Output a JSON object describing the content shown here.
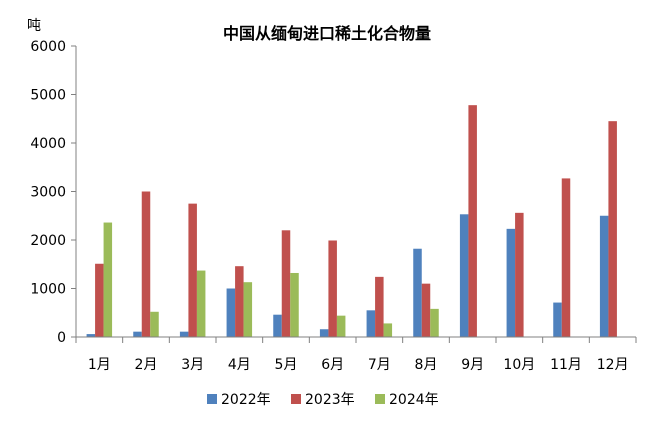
{
  "chart_data": {
    "type": "bar",
    "title": "中国从缅甸进口稀土化合物量",
    "ylabel": "吨",
    "xlabel": "",
    "ylim": [
      0,
      6000
    ],
    "yticks": [
      0,
      1000,
      2000,
      3000,
      4000,
      5000,
      6000
    ],
    "categories": [
      "1月",
      "2月",
      "3月",
      "4月",
      "5月",
      "6月",
      "7月",
      "8月",
      "9月",
      "10月",
      "11月",
      "12月"
    ],
    "series": [
      {
        "name": "2022年",
        "color": "#4F81BD",
        "values": [
          60,
          110,
          110,
          1000,
          460,
          160,
          550,
          1820,
          2530,
          2230,
          710,
          2500
        ]
      },
      {
        "name": "2023年",
        "color": "#C0504D",
        "values": [
          1510,
          3000,
          2750,
          1460,
          2200,
          1990,
          1240,
          1100,
          4780,
          2560,
          3270,
          4450
        ]
      },
      {
        "name": "2024年",
        "color": "#9BBB59",
        "values": [
          2360,
          520,
          1370,
          1130,
          1320,
          440,
          280,
          580,
          null,
          null,
          null,
          null
        ]
      }
    ],
    "grid": false,
    "legend_position": "bottom"
  }
}
